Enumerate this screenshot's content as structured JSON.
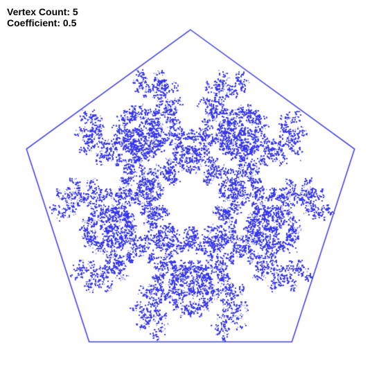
{
  "info": {
    "vertex_count_label": "Vertex Count:",
    "vertex_count_value": "5",
    "coefficient_label": "Coefficient:",
    "coefficient_value": "0.5"
  },
  "fractal": {
    "vertex_count": 5,
    "coefficient": 0.5,
    "point_color": "#3a3af0",
    "background_color": "#ffffff",
    "rule": "chaos-game-no-repeat-vertex"
  }
}
